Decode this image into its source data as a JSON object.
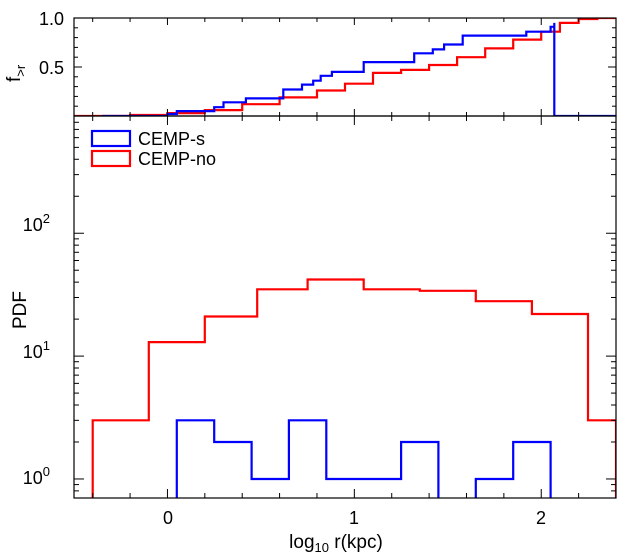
{
  "chart_data": [
    {
      "panel": "top",
      "type": "line",
      "title": "",
      "ylabel_main": "f",
      "ylabel_sub": ">r",
      "xlim": [
        -0.5,
        2.4
      ],
      "ylim": [
        0.0,
        1.0
      ],
      "yticks": [
        0.5,
        1.0
      ],
      "ytick_labels": [
        "0.5",
        "1.0"
      ],
      "xticks": [
        0,
        1,
        2
      ],
      "series": [
        {
          "name": "CEMP-s",
          "color": "#0000ff",
          "style": "step",
          "x": [
            -0.35,
            0.0,
            0.05,
            0.25,
            0.3,
            0.42,
            0.62,
            0.72,
            0.78,
            0.82,
            0.88,
            1.05,
            1.32,
            1.42,
            1.48,
            1.58,
            1.92,
            2.05,
            2.07,
            2.07
          ],
          "y": [
            0.0,
            0.02,
            0.05,
            0.09,
            0.14,
            0.18,
            0.27,
            0.32,
            0.36,
            0.41,
            0.45,
            0.55,
            0.64,
            0.68,
            0.73,
            0.82,
            0.86,
            0.91,
            0.95,
            0.0
          ]
        },
        {
          "name": "CEMP-no",
          "color": "#ff0000",
          "style": "step",
          "x": [
            -0.5,
            -0.4,
            -0.2,
            0.0,
            0.2,
            0.4,
            0.6,
            0.8,
            0.95,
            1.1,
            1.25,
            1.4,
            1.55,
            1.7,
            1.85,
            2.0,
            2.1,
            2.2,
            2.3,
            2.4
          ],
          "y": [
            0.0,
            0.0,
            0.01,
            0.03,
            0.06,
            0.12,
            0.19,
            0.26,
            0.33,
            0.44,
            0.47,
            0.52,
            0.6,
            0.69,
            0.78,
            0.86,
            0.95,
            0.99,
            1.0,
            1.0
          ]
        }
      ]
    },
    {
      "panel": "bottom",
      "type": "bar",
      "title": "",
      "xlabel_prefix": "log",
      "xlabel_sub": "10",
      "xlabel_suffix": " r(kpc)",
      "ylabel": "PDF",
      "yscale": "log",
      "xlim": [
        -0.5,
        2.4
      ],
      "ylim": [
        0.7,
        900
      ],
      "xticks": [
        0,
        1,
        2
      ],
      "xtick_labels": [
        "0",
        "1",
        "2"
      ],
      "yticks": [
        1,
        10,
        100
      ],
      "ytick_bases": [
        "10",
        "10",
        "10"
      ],
      "ytick_exps": [
        "0",
        "1",
        "2"
      ],
      "legend": {
        "position": "top-left",
        "entries": [
          "CEMP-s",
          "CEMP-no"
        ]
      },
      "series": [
        {
          "name": "CEMP-s",
          "color": "#0000ff",
          "style": "histogram",
          "edges": [
            0.05,
            0.25,
            0.45,
            0.65,
            0.85,
            1.25,
            1.45,
            1.65,
            1.85,
            2.05
          ],
          "values": [
            3,
            2,
            1,
            3,
            1,
            2,
            0,
            1,
            2
          ]
        },
        {
          "name": "CEMP-no",
          "color": "#ff0000",
          "style": "histogram",
          "edges": [
            -0.4,
            -0.1,
            0.2,
            0.48,
            0.75,
            1.05,
            1.35,
            1.65,
            1.95,
            2.25,
            2.4
          ],
          "values": [
            3,
            13,
            21,
            35,
            42,
            35,
            34,
            28,
            22,
            3
          ]
        }
      ]
    }
  ]
}
